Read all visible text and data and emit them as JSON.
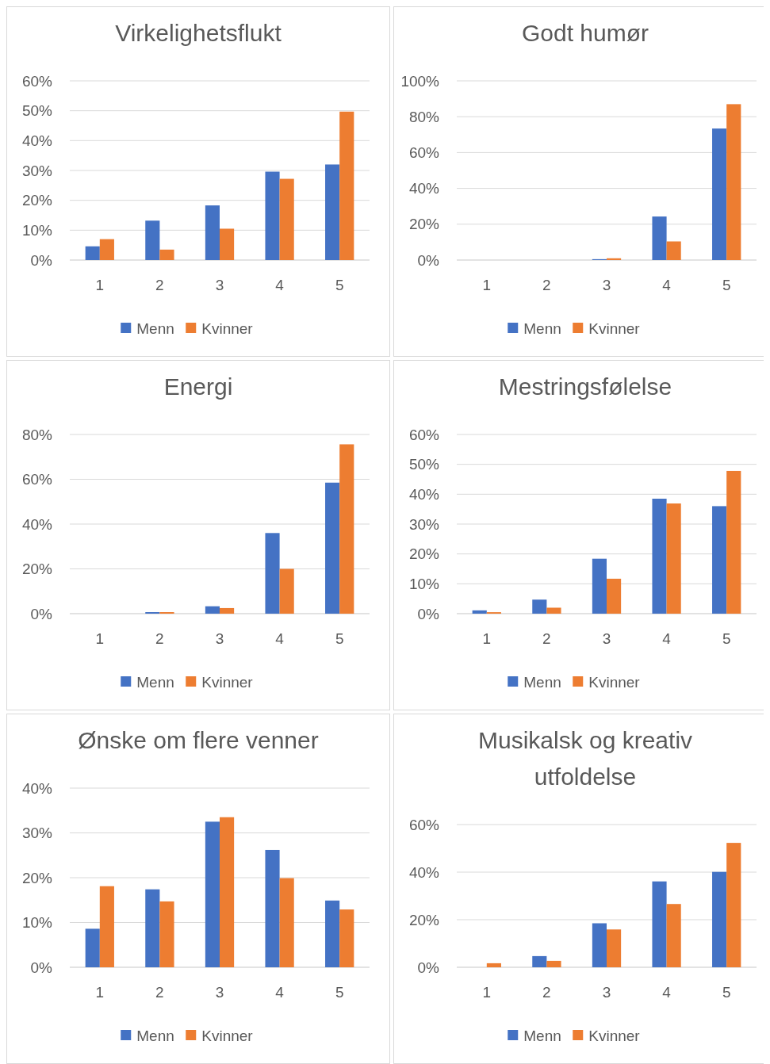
{
  "chart_data": [
    {
      "type": "bar",
      "title": "Virkelighetsflukt",
      "categories": [
        "1",
        "2",
        "3",
        "4",
        "5"
      ],
      "ylim": [
        0,
        60
      ],
      "yticks": [
        {
          "value": 0,
          "label": "0%"
        },
        {
          "value": 10,
          "label": "10%"
        },
        {
          "value": 20,
          "label": "20%"
        },
        {
          "value": 30,
          "label": "30%"
        },
        {
          "value": 40,
          "label": "40%"
        },
        {
          "value": 50,
          "label": "50%"
        },
        {
          "value": 60,
          "label": "60%"
        }
      ],
      "grid": "y",
      "legend": "bottom",
      "series": [
        {
          "name": "Menn",
          "color": "#4472c4",
          "values": [
            4.6,
            13.2,
            18.3,
            29.6,
            32
          ]
        },
        {
          "name": "Kvinner",
          "color": "#ed7d31",
          "values": [
            7,
            3.5,
            10.5,
            27.2,
            49.7
          ]
        }
      ]
    },
    {
      "type": "bar",
      "title": "Godt humør",
      "categories": [
        "1",
        "2",
        "3",
        "4",
        "5"
      ],
      "ylim": [
        0,
        100
      ],
      "yticks": [
        {
          "value": 0,
          "label": "0%"
        },
        {
          "value": 20,
          "label": "20%"
        },
        {
          "value": 40,
          "label": "40%"
        },
        {
          "value": 60,
          "label": "60%"
        },
        {
          "value": 80,
          "label": "80%"
        },
        {
          "value": 100,
          "label": "100%"
        }
      ],
      "grid": "y",
      "legend": "bottom",
      "series": [
        {
          "name": "Menn",
          "color": "#4472c4",
          "values": [
            0,
            0,
            0.5,
            24.3,
            73.4
          ]
        },
        {
          "name": "Kvinner",
          "color": "#ed7d31",
          "values": [
            0,
            0,
            1,
            10.4,
            87
          ]
        }
      ]
    },
    {
      "type": "bar",
      "title": "Energi",
      "categories": [
        "1",
        "2",
        "3",
        "4",
        "5"
      ],
      "ylim": [
        0,
        80
      ],
      "yticks": [
        {
          "value": 0,
          "label": "0%"
        },
        {
          "value": 20,
          "label": "20%"
        },
        {
          "value": 40,
          "label": "40%"
        },
        {
          "value": 60,
          "label": "60%"
        },
        {
          "value": 80,
          "label": "80%"
        }
      ],
      "grid": "y",
      "legend": "bottom",
      "series": [
        {
          "name": "Menn",
          "color": "#4472c4",
          "values": [
            0,
            0.7,
            3.3,
            36,
            58.5
          ]
        },
        {
          "name": "Kvinner",
          "color": "#ed7d31",
          "values": [
            0,
            0.7,
            2.5,
            20,
            75.6
          ]
        }
      ]
    },
    {
      "type": "bar",
      "title": "Mestringsfølelse",
      "categories": [
        "1",
        "2",
        "3",
        "4",
        "5"
      ],
      "ylim": [
        0,
        60
      ],
      "yticks": [
        {
          "value": 0,
          "label": "0%"
        },
        {
          "value": 10,
          "label": "10%"
        },
        {
          "value": 20,
          "label": "20%"
        },
        {
          "value": 30,
          "label": "30%"
        },
        {
          "value": 40,
          "label": "40%"
        },
        {
          "value": 50,
          "label": "50%"
        },
        {
          "value": 60,
          "label": "60%"
        }
      ],
      "grid": "y",
      "legend": "bottom",
      "series": [
        {
          "name": "Menn",
          "color": "#4472c4",
          "values": [
            1.1,
            4.7,
            18.4,
            38.5,
            36
          ]
        },
        {
          "name": "Kvinner",
          "color": "#ed7d31",
          "values": [
            0.5,
            2,
            11.7,
            36.9,
            47.8
          ]
        }
      ]
    },
    {
      "type": "bar",
      "title": "Ønske om flere venner",
      "categories": [
        "1",
        "2",
        "3",
        "4",
        "5"
      ],
      "ylim": [
        0,
        40
      ],
      "yticks": [
        {
          "value": 0,
          "label": "0%"
        },
        {
          "value": 10,
          "label": "10%"
        },
        {
          "value": 20,
          "label": "20%"
        },
        {
          "value": 30,
          "label": "30%"
        },
        {
          "value": 40,
          "label": "40%"
        }
      ],
      "grid": "y",
      "legend": "bottom",
      "series": [
        {
          "name": "Menn",
          "color": "#4472c4",
          "values": [
            8.6,
            17.4,
            32.5,
            26.2,
            14.9
          ]
        },
        {
          "name": "Kvinner",
          "color": "#ed7d31",
          "values": [
            18.1,
            14.7,
            33.5,
            19.9,
            12.9
          ]
        }
      ]
    },
    {
      "type": "bar",
      "title": "Musikalsk og kreativ utfoldelse",
      "categories": [
        "1",
        "2",
        "3",
        "4",
        "5"
      ],
      "ylim": [
        0,
        60
      ],
      "yticks": [
        {
          "value": 0,
          "label": "0%"
        },
        {
          "value": 20,
          "label": "20%"
        },
        {
          "value": 40,
          "label": "40%"
        },
        {
          "value": 60,
          "label": "60%"
        }
      ],
      "grid": "y",
      "legend": "bottom",
      "series": [
        {
          "name": "Menn",
          "color": "#4472c4",
          "values": [
            0,
            4.7,
            18.5,
            36.1,
            40.1
          ]
        },
        {
          "name": "Kvinner",
          "color": "#ed7d31",
          "values": [
            1.7,
            2.7,
            15.9,
            26.6,
            52.3
          ]
        }
      ]
    }
  ]
}
